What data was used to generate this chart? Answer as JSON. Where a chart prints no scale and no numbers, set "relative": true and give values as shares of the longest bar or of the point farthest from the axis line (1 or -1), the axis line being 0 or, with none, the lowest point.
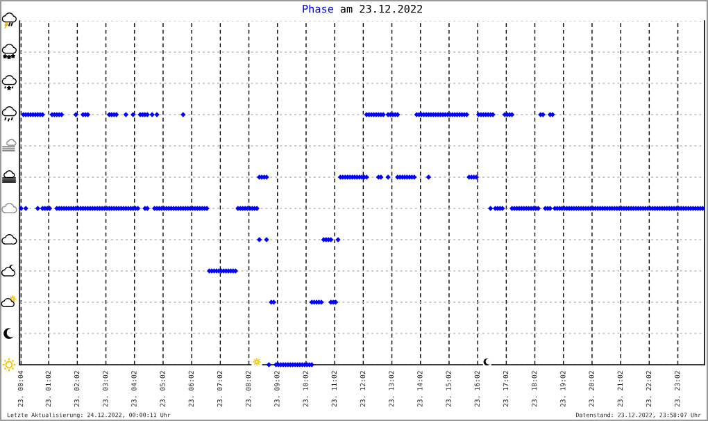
{
  "chart_data": {
    "type": "scatter",
    "title": "am 23.12.2022",
    "marker": "diamond",
    "grid": true,
    "tick_labels": "x",
    "relative": true,
    "annotations": [
      "Letzte Aktualisierung: 24.12.2022, 00:00:11 Uhr",
      "Datenstand: 23.12.2022, 23:58:07 Uhr"
    ],
    "xlim": [
      "2022-12-23T00:01",
      "2022-12-23T23:58"
    ],
    "xticks": [
      {
        "value": "2022-12-23T00:04",
        "label": "23. 00:04"
      },
      {
        "value": "2022-12-23T01:02",
        "label": "23. 01:02"
      },
      {
        "value": "2022-12-23T02:02",
        "label": "23. 02:02"
      },
      {
        "value": "2022-12-23T03:02",
        "label": "23. 03:02"
      },
      {
        "value": "2022-12-23T04:02",
        "label": "23. 04:02"
      },
      {
        "value": "2022-12-23T05:02",
        "label": "23. 05:02"
      },
      {
        "value": "2022-12-23T06:02",
        "label": "23. 06:02"
      },
      {
        "value": "2022-12-23T07:02",
        "label": "23. 07:02"
      },
      {
        "value": "2022-12-23T08:02",
        "label": "23. 08:02"
      },
      {
        "value": "2022-12-23T09:02",
        "label": "23. 09:02"
      },
      {
        "value": "2022-12-23T10:02",
        "label": "23. 10:02"
      },
      {
        "value": "2022-12-23T11:02",
        "label": "23. 11:02"
      },
      {
        "value": "2022-12-23T12:02",
        "label": "23. 12:02"
      },
      {
        "value": "2022-12-23T13:02",
        "label": "23. 13:02"
      },
      {
        "value": "2022-12-23T14:02",
        "label": "23. 14:02"
      },
      {
        "value": "2022-12-23T15:02",
        "label": "23. 15:02"
      },
      {
        "value": "2022-12-23T16:02",
        "label": "23. 16:02"
      },
      {
        "value": "2022-12-23T17:02",
        "label": "23. 17:02"
      },
      {
        "value": "2022-12-23T18:02",
        "label": "23. 18:02"
      },
      {
        "value": "2022-12-23T19:02",
        "label": "23. 19:02"
      },
      {
        "value": "2022-12-23T20:02",
        "label": "23. 20:02"
      },
      {
        "value": "2022-12-23T21:02",
        "label": "23. 21:02"
      },
      {
        "value": "2022-12-23T22:02",
        "label": "23. 22:02"
      },
      {
        "value": "2022-12-23T23:02",
        "label": "23. 23:02"
      }
    ],
    "x": [
      "2022-12-23T00:09",
      "2022-12-23T00:14",
      "2022-12-23T00:19",
      "2022-12-23T00:24",
      "2022-12-23T00:29",
      "2022-12-23T00:34",
      "2022-12-23T00:39",
      "2022-12-23T00:44",
      "2022-12-23T00:49",
      "2022-12-23T01:09",
      "2022-12-23T01:14",
      "2022-12-23T01:19",
      "2022-12-23T01:24",
      "2022-12-23T01:29",
      "2022-12-23T01:59",
      "2022-12-23T02:14",
      "2022-12-23T02:19",
      "2022-12-23T02:24",
      "2022-12-23T03:09",
      "2022-12-23T03:14",
      "2022-12-23T03:19",
      "2022-12-23T03:24",
      "2022-12-23T03:44",
      "2022-12-23T03:59",
      "2022-12-23T04:14",
      "2022-12-23T04:19",
      "2022-12-23T04:24",
      "2022-12-23T04:29",
      "2022-12-23T04:39",
      "2022-12-23T04:49",
      "2022-12-23T05:44",
      "2022-12-23T12:09",
      "2022-12-23T12:14",
      "2022-12-23T12:19",
      "2022-12-23T12:24",
      "2022-12-23T12:29",
      "2022-12-23T12:34",
      "2022-12-23T12:39",
      "2022-12-23T12:44",
      "2022-12-23T12:54",
      "2022-12-23T12:59",
      "2022-12-23T13:04",
      "2022-12-23T13:09",
      "2022-12-23T13:14",
      "2022-12-23T13:54",
      "2022-12-23T13:59",
      "2022-12-23T14:04",
      "2022-12-23T14:09",
      "2022-12-23T14:14",
      "2022-12-23T14:19",
      "2022-12-23T14:24",
      "2022-12-23T14:29",
      "2022-12-23T14:34",
      "2022-12-23T14:39",
      "2022-12-23T14:44",
      "2022-12-23T14:49",
      "2022-12-23T14:54",
      "2022-12-23T14:59",
      "2022-12-23T15:04",
      "2022-12-23T15:09",
      "2022-12-23T15:14",
      "2022-12-23T15:19",
      "2022-12-23T15:24",
      "2022-12-23T15:29",
      "2022-12-23T15:34",
      "2022-12-23T15:39",
      "2022-12-23T16:04",
      "2022-12-23T16:09",
      "2022-12-23T16:14",
      "2022-12-23T16:19",
      "2022-12-23T16:24",
      "2022-12-23T16:29",
      "2022-12-23T16:34",
      "2022-12-23T16:59",
      "2022-12-23T17:04",
      "2022-12-23T17:09",
      "2022-12-23T17:14",
      "2022-12-23T18:14",
      "2022-12-23T18:19",
      "2022-12-23T18:34",
      "2022-12-23T18:39",
      "2022-12-23T08:24",
      "2022-12-23T08:29",
      "2022-12-23T08:34",
      "2022-12-23T08:39",
      "2022-12-23T11:14",
      "2022-12-23T11:19",
      "2022-12-23T11:24",
      "2022-12-23T11:29",
      "2022-12-23T11:34",
      "2022-12-23T11:39",
      "2022-12-23T11:44",
      "2022-12-23T11:49",
      "2022-12-23T11:54",
      "2022-12-23T11:59",
      "2022-12-23T12:04",
      "2022-12-23T12:09",
      "2022-12-23T12:34",
      "2022-12-23T12:39",
      "2022-12-23T12:54",
      "2022-12-23T13:14",
      "2022-12-23T13:19",
      "2022-12-23T13:24",
      "2022-12-23T13:29",
      "2022-12-23T13:34",
      "2022-12-23T13:39",
      "2022-12-23T13:44",
      "2022-12-23T13:49",
      "2022-12-23T14:19",
      "2022-12-23T15:44",
      "2022-12-23T15:49",
      "2022-12-23T15:54",
      "2022-12-23T15:59",
      "2022-12-23T00:04",
      "2022-12-23T00:14",
      "2022-12-23T00:39",
      "2022-12-23T00:49",
      "2022-12-23T00:54",
      "2022-12-23T00:59",
      "2022-12-23T01:04",
      "2022-12-23T01:19",
      "2022-12-23T01:24",
      "2022-12-23T01:29",
      "2022-12-23T01:34",
      "2022-12-23T01:39",
      "2022-12-23T01:44",
      "2022-12-23T01:49",
      "2022-12-23T01:54",
      "2022-12-23T01:59",
      "2022-12-23T02:04",
      "2022-12-23T02:09",
      "2022-12-23T02:14",
      "2022-12-23T02:19",
      "2022-12-23T02:24",
      "2022-12-23T02:29",
      "2022-12-23T02:34",
      "2022-12-23T02:39",
      "2022-12-23T02:44",
      "2022-12-23T02:49",
      "2022-12-23T02:54",
      "2022-12-23T02:59",
      "2022-12-23T03:04",
      "2022-12-23T03:09",
      "2022-12-23T03:14",
      "2022-12-23T03:19",
      "2022-12-23T03:24",
      "2022-12-23T03:29",
      "2022-12-23T03:34",
      "2022-12-23T03:39",
      "2022-12-23T03:44",
      "2022-12-23T03:49",
      "2022-12-23T03:54",
      "2022-12-23T03:59",
      "2022-12-23T04:04",
      "2022-12-23T04:09",
      "2022-12-23T04:24",
      "2022-12-23T04:29",
      "2022-12-23T04:44",
      "2022-12-23T04:49",
      "2022-12-23T04:54",
      "2022-12-23T04:59",
      "2022-12-23T05:04",
      "2022-12-23T05:09",
      "2022-12-23T05:14",
      "2022-12-23T05:19",
      "2022-12-23T05:24",
      "2022-12-23T05:29",
      "2022-12-23T05:34",
      "2022-12-23T05:39",
      "2022-12-23T05:44",
      "2022-12-23T05:49",
      "2022-12-23T05:54",
      "2022-12-23T05:59",
      "2022-12-23T06:04",
      "2022-12-23T06:09",
      "2022-12-23T06:14",
      "2022-12-23T06:19",
      "2022-12-23T06:24",
      "2022-12-23T06:29",
      "2022-12-23T06:34",
      "2022-12-23T07:39",
      "2022-12-23T07:44",
      "2022-12-23T07:49",
      "2022-12-23T07:54",
      "2022-12-23T07:59",
      "2022-12-23T08:04",
      "2022-12-23T08:09",
      "2022-12-23T08:14",
      "2022-12-23T08:19",
      "2022-12-23T16:29",
      "2022-12-23T16:39",
      "2022-12-23T16:44",
      "2022-12-23T16:49",
      "2022-12-23T16:54",
      "2022-12-23T17:14",
      "2022-12-23T17:19",
      "2022-12-23T17:24",
      "2022-12-23T17:29",
      "2022-12-23T17:34",
      "2022-12-23T17:39",
      "2022-12-23T17:44",
      "2022-12-23T17:49",
      "2022-12-23T17:54",
      "2022-12-23T17:59",
      "2022-12-23T18:04",
      "2022-12-23T18:09",
      "2022-12-23T18:24",
      "2022-12-23T18:29",
      "2022-12-23T18:34",
      "2022-12-23T18:44",
      "2022-12-23T18:49",
      "2022-12-23T18:54",
      "2022-12-23T18:59",
      "2022-12-23T19:04",
      "2022-12-23T19:09",
      "2022-12-23T19:14",
      "2022-12-23T19:19",
      "2022-12-23T19:24",
      "2022-12-23T19:29",
      "2022-12-23T19:34",
      "2022-12-23T19:39",
      "2022-12-23T19:44",
      "2022-12-23T19:49",
      "2022-12-23T19:54",
      "2022-12-23T19:59",
      "2022-12-23T20:04",
      "2022-12-23T20:09",
      "2022-12-23T20:14",
      "2022-12-23T20:19",
      "2022-12-23T20:24",
      "2022-12-23T20:29",
      "2022-12-23T20:34",
      "2022-12-23T20:39",
      "2022-12-23T20:44",
      "2022-12-23T20:49",
      "2022-12-23T20:54",
      "2022-12-23T20:59",
      "2022-12-23T21:04",
      "2022-12-23T21:09",
      "2022-12-23T21:14",
      "2022-12-23T21:19",
      "2022-12-23T21:24",
      "2022-12-23T21:29",
      "2022-12-23T21:34",
      "2022-12-23T21:39",
      "2022-12-23T21:44",
      "2022-12-23T21:49",
      "2022-12-23T21:54",
      "2022-12-23T21:59",
      "2022-12-23T22:04",
      "2022-12-23T22:09",
      "2022-12-23T22:14",
      "2022-12-23T22:19",
      "2022-12-23T22:24",
      "2022-12-23T22:29",
      "2022-12-23T22:34",
      "2022-12-23T22:39",
      "2022-12-23T22:44",
      "2022-12-23T22:49",
      "2022-12-23T22:54",
      "2022-12-23T22:59",
      "2022-12-23T23:04",
      "2022-12-23T23:09",
      "2022-12-23T23:14",
      "2022-12-23T23:19",
      "2022-12-23T23:24",
      "2022-12-23T23:29",
      "2022-12-23T23:34",
      "2022-12-23T23:39",
      "2022-12-23T23:44",
      "2022-12-23T23:49",
      "2022-12-23T23:54",
      "2022-12-23T08:24",
      "2022-12-23T08:39",
      "2022-12-23T10:39",
      "2022-12-23T10:44",
      "2022-12-23T10:49",
      "2022-12-23T10:54",
      "2022-12-23T11:09",
      "2022-12-23T06:39",
      "2022-12-23T06:44",
      "2022-12-23T06:49",
      "2022-12-23T06:54",
      "2022-12-23T06:59",
      "2022-12-23T07:04",
      "2022-12-23T07:09",
      "2022-12-23T07:14",
      "2022-12-23T07:19",
      "2022-12-23T07:24",
      "2022-12-23T07:29",
      "2022-12-23T07:34",
      "2022-12-23T08:49",
      "2022-12-23T08:54",
      "2022-12-23T10:14",
      "2022-12-23T10:19",
      "2022-12-23T10:24",
      "2022-12-23T10:29",
      "2022-12-23T10:34",
      "2022-12-23T10:54",
      "2022-12-23T10:59",
      "2022-12-23T11:04",
      "2022-12-23T08:44",
      "2022-12-23T08:59",
      "2022-12-23T09:04",
      "2022-12-23T09:09",
      "2022-12-23T09:14",
      "2022-12-23T09:19",
      "2022-12-23T09:24",
      "2022-12-23T09:29",
      "2022-12-23T09:34",
      "2022-12-23T09:39",
      "2022-12-23T09:44",
      "2022-12-23T09:49",
      "2022-12-23T09:54",
      "2022-12-23T09:59",
      "2022-12-23T10:04",
      "2022-12-23T10:09",
      "2022-12-23T10:14"
    ],
    "series": [
      {
        "name": "Phase",
        "color": "#0000ff",
        "values": [
          1,
          1,
          1,
          1,
          1,
          1,
          1,
          1,
          1,
          1,
          1,
          1,
          1,
          1,
          1,
          1,
          1,
          1,
          1,
          1,
          1,
          1,
          1,
          1,
          1,
          1,
          1,
          1,
          1,
          1,
          1,
          1,
          1,
          1,
          1,
          1,
          1,
          1,
          1,
          1,
          1,
          1,
          1,
          1,
          1,
          1,
          1,
          1,
          1,
          1,
          1,
          1,
          1,
          1,
          1,
          1,
          1,
          1,
          1,
          1,
          1,
          1,
          1,
          1,
          1,
          1,
          1,
          1,
          1,
          1,
          1,
          1,
          1,
          1,
          1,
          1,
          1,
          1,
          1,
          1,
          1,
          0.75,
          0.75,
          0.75,
          0.75,
          0.75,
          0.75,
          0.75,
          0.75,
          0.75,
          0.75,
          0.75,
          0.75,
          0.75,
          0.75,
          0.75,
          0.75,
          0.75,
          0.75,
          0.75,
          0.75,
          0.75,
          0.75,
          0.75,
          0.75,
          0.75,
          0.75,
          0.75,
          0.75,
          0.75,
          0.75,
          0.75,
          0.75,
          0.625,
          0.625,
          0.625,
          0.625,
          0.625,
          0.625,
          0.625,
          0.625,
          0.625,
          0.625,
          0.625,
          0.625,
          0.625,
          0.625,
          0.625,
          0.625,
          0.625,
          0.625,
          0.625,
          0.625,
          0.625,
          0.625,
          0.625,
          0.625,
          0.625,
          0.625,
          0.625,
          0.625,
          0.625,
          0.625,
          0.625,
          0.625,
          0.625,
          0.625,
          0.625,
          0.625,
          0.625,
          0.625,
          0.625,
          0.625,
          0.625,
          0.625,
          0.625,
          0.625,
          0.625,
          0.625,
          0.625,
          0.625,
          0.625,
          0.625,
          0.625,
          0.625,
          0.625,
          0.625,
          0.625,
          0.625,
          0.625,
          0.625,
          0.625,
          0.625,
          0.625,
          0.625,
          0.625,
          0.625,
          0.625,
          0.625,
          0.625,
          0.625,
          0.625,
          0.625,
          0.625,
          0.625,
          0.625,
          0.625,
          0.625,
          0.625,
          0.625,
          0.625,
          0.625,
          0.625,
          0.625,
          0.625,
          0.625,
          0.625,
          0.625,
          0.625,
          0.625,
          0.625,
          0.625,
          0.625,
          0.625,
          0.625,
          0.625,
          0.625,
          0.625,
          0.625,
          0.625,
          0.625,
          0.625,
          0.625,
          0.625,
          0.625,
          0.625,
          0.625,
          0.625,
          0.625,
          0.625,
          0.625,
          0.625,
          0.625,
          0.625,
          0.625,
          0.625,
          0.625,
          0.625,
          0.625,
          0.625,
          0.625,
          0.625,
          0.625,
          0.625,
          0.625,
          0.625,
          0.625,
          0.625,
          0.625,
          0.625,
          0.625,
          0.625,
          0.625,
          0.625,
          0.625,
          0.625,
          0.625,
          0.625,
          0.625,
          0.625,
          0.625,
          0.625,
          0.625,
          0.625,
          0.625,
          0.625,
          0.625,
          0.625,
          0.625,
          0.625,
          0.625,
          0.625,
          0.625,
          0.625,
          0.625,
          0.625,
          0.625,
          0.625,
          0.625,
          0.625,
          0.625,
          0.625,
          0.5,
          0.5,
          0.5,
          0.5,
          0.5,
          0.5,
          0.5,
          0.375,
          0.375,
          0.375,
          0.375,
          0.375,
          0.375,
          0.375,
          0.375,
          0.375,
          0.375,
          0.375,
          0.375,
          0.25,
          0.25,
          0.25,
          0.25,
          0.25,
          0.25,
          0.25,
          0.25,
          0.25,
          0.25,
          0,
          0,
          0,
          0,
          0,
          0,
          0,
          0,
          0,
          0,
          0,
          0,
          0,
          0,
          0,
          0,
          0
        ]
      }
    ]
  }
}
